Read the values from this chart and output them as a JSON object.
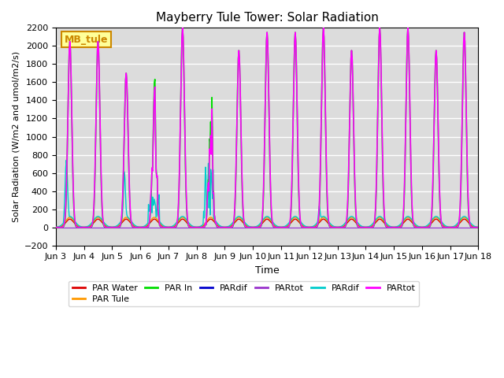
{
  "title": "Mayberry Tule Tower: Solar Radiation",
  "xlabel": "Time",
  "ylabel": "Solar Radiation (W/m2 and umol/m2/s)",
  "ylim": [
    -200,
    2200
  ],
  "yticks": [
    -200,
    0,
    200,
    400,
    600,
    800,
    1000,
    1200,
    1400,
    1600,
    1800,
    2000,
    2200
  ],
  "xtick_labels": [
    "Jun 3",
    "Jun 4",
    "Jun 5",
    "Jun 6",
    "Jun 7",
    "Jun 8",
    "Jun 9",
    "Jun 10",
    "Jun 11",
    "Jun 12",
    "Jun 13",
    "Jun 14",
    "Jun 15",
    "Jun 16",
    "Jun 17",
    "Jun 18"
  ],
  "legend_entries": [
    {
      "label": "PAR Water",
      "color": "#dd0000"
    },
    {
      "label": "PAR Tule",
      "color": "#ff9900"
    },
    {
      "label": "PAR In",
      "color": "#00dd00"
    },
    {
      "label": "PARdif",
      "color": "#0000cc"
    },
    {
      "label": "PARtot",
      "color": "#9933cc"
    },
    {
      "label": "PARdif",
      "color": "#00cccc"
    },
    {
      "label": "PARtot",
      "color": "#ff00ff"
    }
  ],
  "watermark_text": "MB_tule",
  "watermark_bg": "#ffff99",
  "watermark_border": "#cc8800",
  "bg_color": "#dcdcdc",
  "grid_color": "white",
  "figsize": [
    6.4,
    4.8
  ],
  "dpi": 100
}
